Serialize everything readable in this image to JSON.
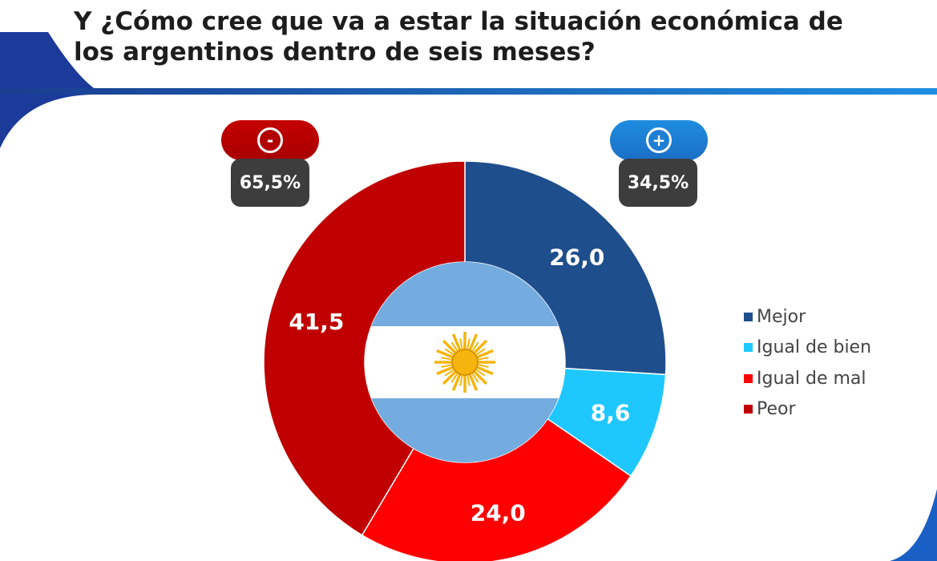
{
  "title": {
    "line1": "Y ¿Cómo cree que va a estar la situación económica de",
    "line2": "los argentinos dentro de seis meses?"
  },
  "groups": {
    "negative": {
      "icon": "minus-icon",
      "symbol": "-",
      "total": "65,5%",
      "color": "#b80000"
    },
    "positive": {
      "icon": "plus-icon",
      "symbol": "+",
      "total": "34,5%",
      "color": "#1f86d8"
    }
  },
  "chart_data": {
    "type": "pie",
    "donut": true,
    "center_image": "argentina-flag-icon",
    "slices": [
      {
        "label": "Mejor",
        "value": 26.0,
        "display": "26,0",
        "color": "#1f4e8c"
      },
      {
        "label": "Igual de bien",
        "value": 8.6,
        "display": "8,6",
        "color": "#1ec8ff"
      },
      {
        "label": "Igual de mal",
        "value": 24.0,
        "display": "24,0",
        "color": "#ff0000"
      },
      {
        "label": "Peor",
        "value": 41.5,
        "display": "41,5",
        "color": "#c00000"
      }
    ],
    "legend_position": "right"
  },
  "flag_colors": {
    "blue": "#74acdf",
    "white": "#ffffff",
    "sun": "#f6b40e"
  }
}
